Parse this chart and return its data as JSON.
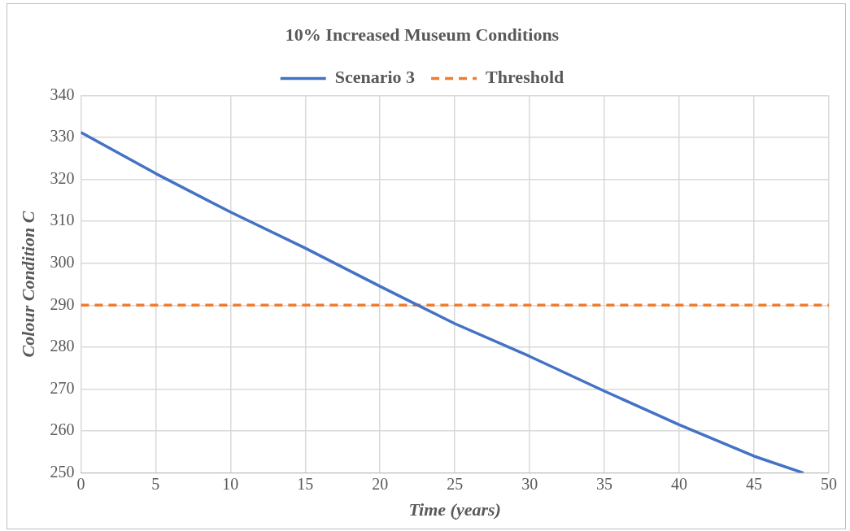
{
  "chart_data": {
    "type": "line",
    "title": "10% Increased Museum Conditions",
    "xlabel": "Time (years)",
    "ylabel": "Colour Condition C",
    "xlim": [
      0,
      50
    ],
    "xticks": [
      0,
      5,
      10,
      15,
      20,
      25,
      30,
      35,
      40,
      45,
      50
    ],
    "ylim": [
      250,
      340
    ],
    "yticks": [
      250,
      260,
      270,
      280,
      290,
      300,
      310,
      320,
      330,
      340
    ],
    "grid": true,
    "legend": "top",
    "marker": "none",
    "series": [
      {
        "name": "Scenario 3",
        "color": "#4472c4",
        "line_style": "solid",
        "x": [
          0,
          5,
          10,
          15,
          20,
          25,
          30,
          35,
          40,
          45,
          48.3
        ],
        "values": [
          331.2,
          321.4,
          312.2,
          303.6,
          294.5,
          285.6,
          277.8,
          269.5,
          261.5,
          254,
          250
        ]
      },
      {
        "name": "Threshold",
        "color": "#ed7d31",
        "line_style": "dashed",
        "x": [
          0,
          50
        ],
        "values": [
          290,
          290
        ]
      }
    ]
  }
}
